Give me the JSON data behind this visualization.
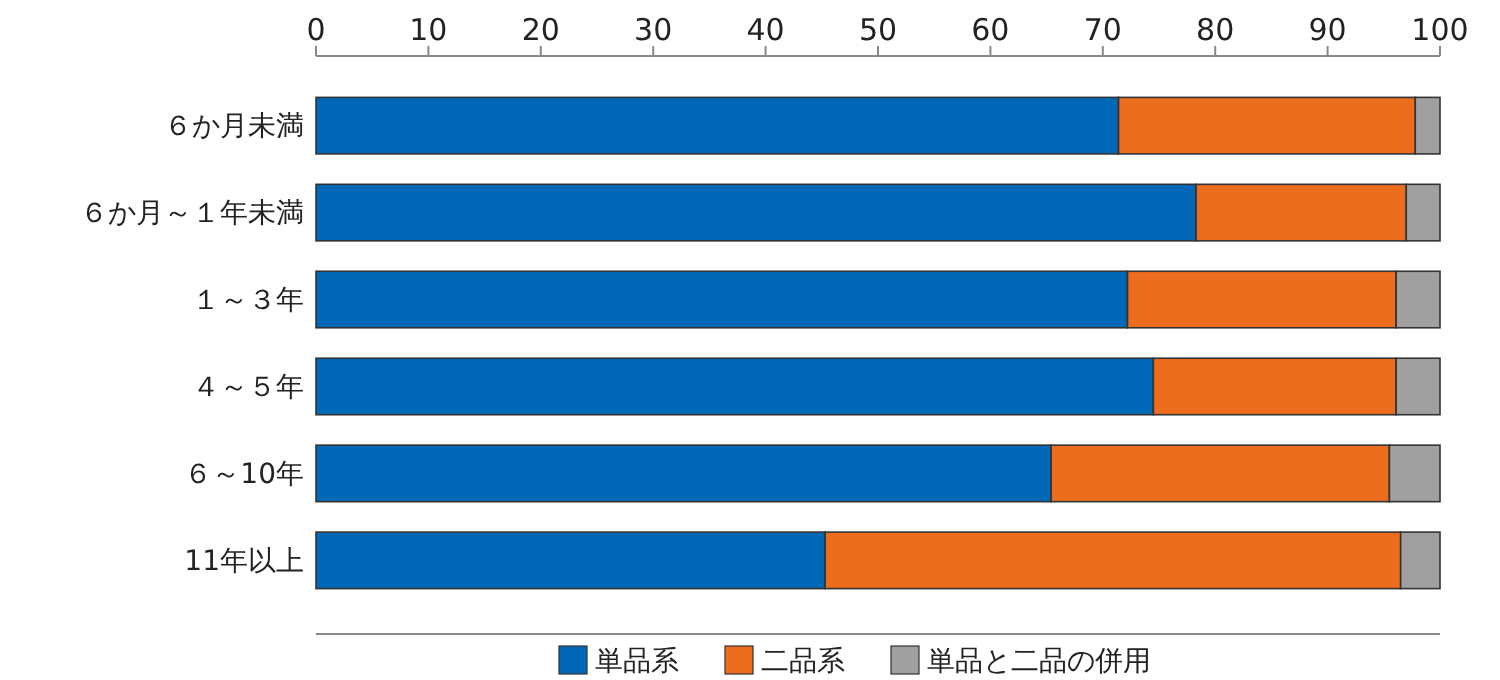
{
  "chart_data": {
    "type": "bar",
    "orientation": "horizontal",
    "stacked": true,
    "categories": [
      "６か月未満",
      "６か月～１年未満",
      "１～３年",
      "４～５年",
      "６～10年",
      "11年以上"
    ],
    "series": [
      {
        "name": "単品系",
        "color": "#0068b7",
        "values": [
          71.4,
          78.3,
          72.2,
          74.5,
          65.4,
          45.3
        ]
      },
      {
        "name": "二品系",
        "color": "#ed6d1f",
        "values": [
          26.4,
          18.7,
          23.9,
          21.6,
          30.1,
          51.2
        ]
      },
      {
        "name": "単品と二品の併用",
        "color": "#a0a0a0",
        "values": [
          2.2,
          3.0,
          3.9,
          3.9,
          4.5,
          3.5
        ]
      }
    ],
    "xlim": [
      0,
      100
    ],
    "xticks": [
      0,
      10,
      20,
      30,
      40,
      50,
      60,
      70,
      80,
      90,
      100
    ],
    "grid": false,
    "legend": "bottom"
  }
}
